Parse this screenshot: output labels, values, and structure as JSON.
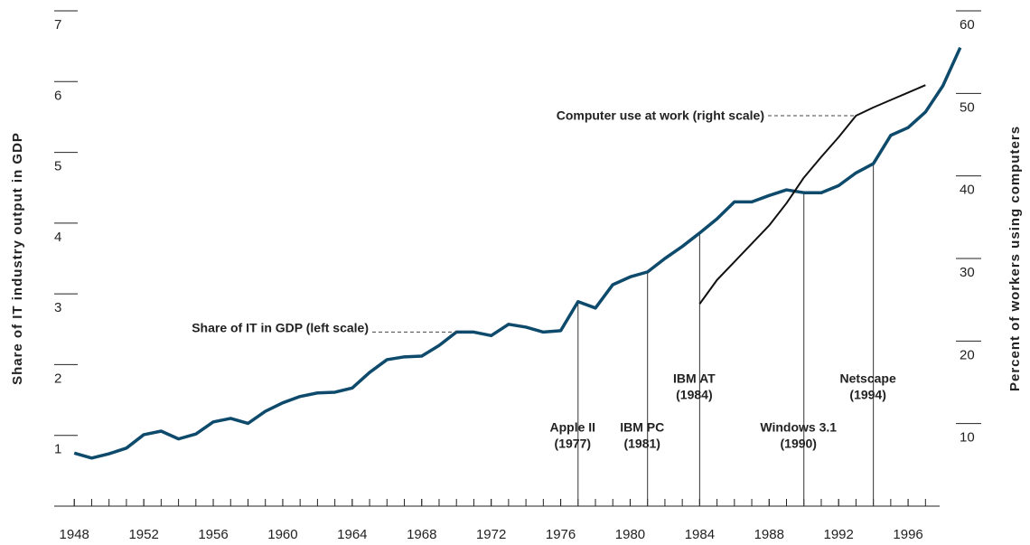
{
  "chart_data": {
    "type": "line",
    "y_label": "Share of IT industry output in GDP",
    "y2_label": "Percent of workers using computers",
    "x": [
      1948,
      1949,
      1950,
      1951,
      1952,
      1953,
      1954,
      1955,
      1956,
      1957,
      1958,
      1959,
      1960,
      1961,
      1962,
      1963,
      1964,
      1965,
      1966,
      1967,
      1968,
      1969,
      1970,
      1971,
      1972,
      1973,
      1974,
      1975,
      1976,
      1977,
      1978,
      1979,
      1980,
      1981,
      1982,
      1983,
      1984,
      1985,
      1986,
      1987,
      1988,
      1989,
      1990,
      1991,
      1992,
      1993,
      1994,
      1995,
      1996,
      1997,
      1998,
      1999
    ],
    "series": [
      {
        "name": "Share of IT in GDP (left scale)",
        "color": "#0d4a6b",
        "values": [
          0.75,
          0.68,
          0.74,
          0.82,
          1.01,
          1.06,
          0.95,
          1.02,
          1.19,
          1.24,
          1.17,
          1.34,
          1.46,
          1.55,
          1.6,
          1.61,
          1.67,
          1.89,
          2.07,
          2.11,
          2.12,
          2.27,
          2.46,
          2.46,
          2.41,
          2.57,
          2.53,
          2.46,
          2.48,
          2.89,
          2.8,
          3.13,
          3.24,
          3.31,
          3.5,
          3.67,
          3.86,
          4.06,
          4.3,
          4.3,
          4.39,
          4.47,
          4.43,
          4.43,
          4.53,
          4.71,
          4.84,
          5.24,
          5.35,
          5.57,
          5.94,
          6.48
        ]
      },
      {
        "name": "Computer use at work (right scale)",
        "color": "#111111",
        "axis": "y2",
        "values": [
          null,
          null,
          null,
          null,
          null,
          null,
          null,
          null,
          null,
          null,
          null,
          null,
          null,
          null,
          null,
          null,
          null,
          null,
          null,
          null,
          null,
          null,
          null,
          null,
          null,
          null,
          null,
          null,
          null,
          null,
          null,
          null,
          null,
          null,
          null,
          null,
          24.5,
          27.4,
          29.6,
          31.8,
          34.0,
          36.7,
          39.8,
          42.3,
          44.7,
          47.3,
          48.3,
          49.2,
          50.1,
          51.0,
          null,
          null
        ]
      }
    ],
    "xlim": [
      1947,
      2000
    ],
    "xticks": [
      1948,
      1952,
      1956,
      1960,
      1964,
      1968,
      1972,
      1976,
      1980,
      1984,
      1988,
      1992,
      1996
    ],
    "ylim": [
      0,
      7
    ],
    "yticks": [
      1,
      2,
      3,
      4,
      5,
      6,
      7
    ],
    "y2lim": [
      0,
      60
    ],
    "y2ticks": [
      10,
      20,
      30,
      40,
      50,
      60
    ],
    "annotations": [
      {
        "label": "Apple II",
        "sublabel": "(1977)",
        "x": 1977
      },
      {
        "label": "IBM PC",
        "sublabel": "(1981)",
        "x": 1981
      },
      {
        "label": "IBM AT",
        "sublabel": "(1984)",
        "x": 1984
      },
      {
        "label": "Windows 3.1",
        "sublabel": "(1990)",
        "x": 1990
      },
      {
        "label": "Netscape",
        "sublabel": "(1994)",
        "x": 1994
      }
    ]
  }
}
